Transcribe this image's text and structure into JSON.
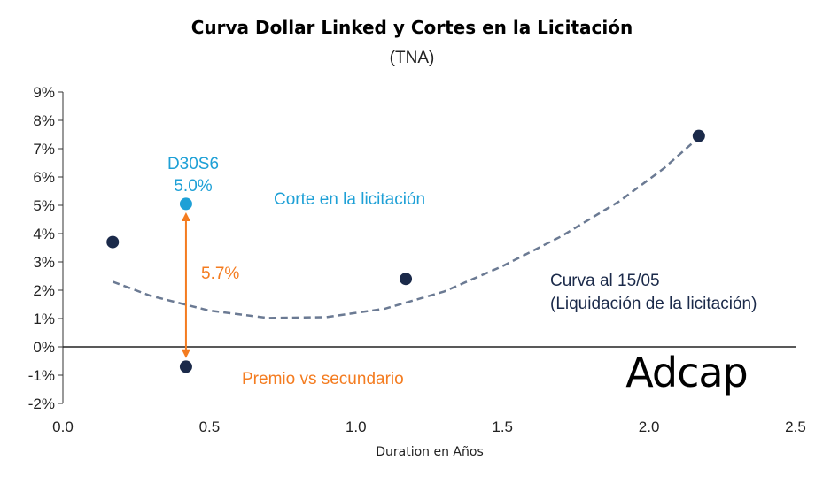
{
  "chart_data": {
    "type": "scatter",
    "title": "Curva Dollar Linked y Cortes en la Licitación",
    "subtitle": "(TNA)",
    "xlabel": "Duration en Años",
    "ylabel": "",
    "xlim": [
      0.0,
      2.5
    ],
    "ylim": [
      -2,
      9
    ],
    "x_ticks": [
      0.0,
      0.5,
      1.0,
      1.5,
      2.0,
      2.5
    ],
    "x_tick_labels": [
      "0.0",
      "0.5",
      "1.0",
      "1.5",
      "2.0",
      "2.5"
    ],
    "y_ticks": [
      9,
      8,
      7,
      6,
      5,
      4,
      3,
      2,
      1,
      0,
      -1,
      -2
    ],
    "y_tick_labels": [
      "9%",
      "8%",
      "7%",
      "6%",
      "5%",
      "4%",
      "3%",
      "2%",
      "1%",
      "0%",
      "-1%",
      "-2%"
    ],
    "grid": false,
    "series": [
      {
        "points": [
          {
            "x": 0.17,
            "y": 3.7
          },
          {
            "x": 0.42,
            "y": -0.7
          },
          {
            "x": 1.17,
            "y": 2.4
          },
          {
            "x": 2.17,
            "y": 7.45
          }
        ],
        "color": "#1b2a4a"
      },
      {
        "points": [
          {
            "x": 0.42,
            "y": 5.05
          }
        ],
        "color": "#1ea0d6"
      }
    ],
    "trendline": {
      "style": "dashed",
      "color": "#6b7a93",
      "points": [
        {
          "x": 0.17,
          "y": 2.3
        },
        {
          "x": 0.3,
          "y": 1.8
        },
        {
          "x": 0.5,
          "y": 1.28
        },
        {
          "x": 0.7,
          "y": 1.02
        },
        {
          "x": 0.9,
          "y": 1.05
        },
        {
          "x": 1.1,
          "y": 1.35
        },
        {
          "x": 1.3,
          "y": 1.95
        },
        {
          "x": 1.5,
          "y": 2.85
        },
        {
          "x": 1.7,
          "y": 3.9
        },
        {
          "x": 1.9,
          "y": 5.15
        },
        {
          "x": 2.05,
          "y": 6.3
        },
        {
          "x": 2.17,
          "y": 7.4
        }
      ]
    },
    "spread_arrow": {
      "x": 0.42,
      "y_top": 4.75,
      "y_bottom": -0.4,
      "color": "#f47c20"
    },
    "annotations": {
      "bond_name": "D30S6",
      "bond_rate": "5.0%",
      "cut_label": "Corte en la licitación",
      "spread": "5.7%",
      "premium": "Premio vs secundario",
      "curve_line1": "Curva al 15/05",
      "curve_line2": "(Liquidación de la licitación)"
    },
    "colors": {
      "cut": "#1ea0d6",
      "spread": "#f47c20",
      "curve_text": "#1b2a4a"
    }
  },
  "logo": {
    "text": "Adcap"
  }
}
